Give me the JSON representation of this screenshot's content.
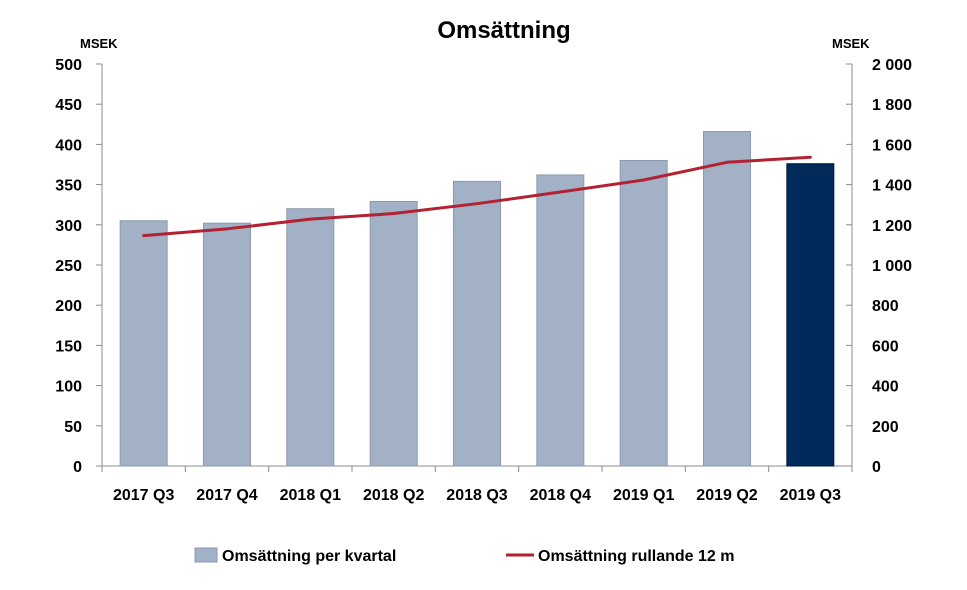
{
  "chart_data": {
    "type": "bar+line",
    "title": "Omsättning",
    "y_left_unit": "MSEK",
    "y_right_unit": "MSEK",
    "y_left_range": [
      0,
      500
    ],
    "y_left_ticks": [
      "500",
      "450",
      "400",
      "350",
      "300",
      "250",
      "200",
      "150",
      "100",
      "50",
      "0"
    ],
    "y_right_range": [
      0,
      2000
    ],
    "y_right_ticks": [
      "2 000",
      "1 800",
      "1 600",
      "1 400",
      "1 200",
      "1 000",
      "800",
      "600",
      "400",
      "200",
      "0"
    ],
    "grid": false,
    "categories": [
      "2017 Q3",
      "2017 Q4",
      "2018 Q1",
      "2018 Q2",
      "2018 Q3",
      "2018 Q4",
      "2019 Q1",
      "2019 Q2",
      "2019 Q3"
    ],
    "series": [
      {
        "name": "Omsättning per kvartal",
        "type": "bar",
        "axis": "left",
        "values": [
          305,
          302,
          320,
          329,
          354,
          362,
          380,
          416,
          376
        ],
        "color": "#a3b1c6",
        "highlight_color": "#002a5a",
        "highlight_index": 8
      },
      {
        "name": "Omsättning rullande 12 m",
        "type": "line",
        "axis": "right",
        "values": [
          1146,
          1180,
          1228,
          1256,
          1305,
          1363,
          1423,
          1511,
          1536
        ],
        "color": "#b22232"
      }
    ],
    "legend_position": "bottom"
  }
}
